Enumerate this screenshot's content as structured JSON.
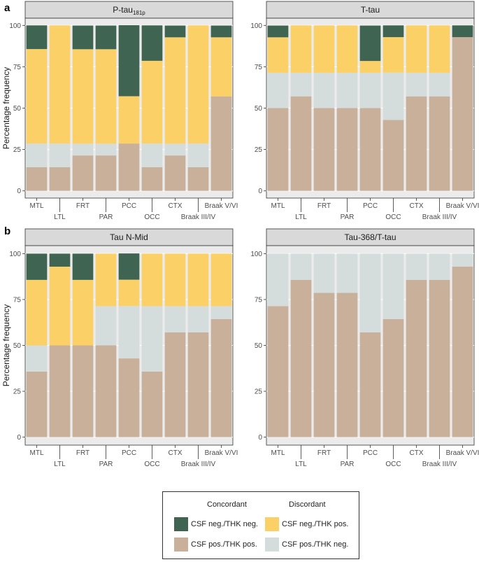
{
  "panel_letters": [
    "a",
    "b"
  ],
  "colors": {
    "csf_neg_thk_neg": "#3f6452",
    "csf_neg_thk_pos": "#fbd066",
    "csf_pos_thk_pos": "#c8b09a",
    "csf_pos_thk_neg": "#d4dcdc",
    "strip": "#d9d9d9",
    "panel_bg": "#ebebeb"
  },
  "legend": {
    "concordant_title": "Concordant",
    "discordant_title": "Discordant",
    "items": [
      {
        "key": "csf_neg_thk_neg",
        "prefix": "CSF",
        "label": "neg./THK neg."
      },
      {
        "key": "csf_neg_thk_pos",
        "prefix": "CSF",
        "label": "neg./THK pos."
      },
      {
        "key": "csf_pos_thk_pos",
        "prefix": "CSF",
        "label": "pos./THK pos."
      },
      {
        "key": "csf_pos_thk_neg",
        "prefix": "CSF",
        "label": "pos./THK neg."
      }
    ]
  },
  "chart_data": [
    {
      "type": "bar",
      "stacked": true,
      "title": "P-tau",
      "title_subscript": "181p",
      "panel_letter": "a",
      "ylabel": "Percentage frequency",
      "ylim": [
        0,
        100
      ],
      "yticks": [
        0,
        25,
        50,
        75,
        100
      ],
      "categories": [
        "MTL",
        "LTL",
        "FRT",
        "PAR",
        "PCC",
        "OCC",
        "CTX",
        "Braak III/IV",
        "Braak V/VI"
      ],
      "series": [
        {
          "name": "CSF pos./THK pos.",
          "key": "csf_pos_thk_pos",
          "values": [
            14.3,
            14.3,
            21.4,
            21.4,
            28.6,
            14.3,
            21.4,
            14.3,
            57.1
          ]
        },
        {
          "name": "CSF pos./THK neg.",
          "key": "csf_pos_thk_neg",
          "values": [
            14.3,
            14.3,
            7.1,
            7.1,
            0,
            14.3,
            7.1,
            14.3,
            0
          ]
        },
        {
          "name": "CSF neg./THK pos.",
          "key": "csf_neg_thk_pos",
          "values": [
            57.1,
            71.4,
            57.1,
            57.1,
            28.6,
            50.0,
            64.3,
            71.4,
            35.7
          ]
        },
        {
          "name": "CSF neg./THK neg.",
          "key": "csf_neg_thk_neg",
          "values": [
            14.3,
            0,
            14.3,
            14.3,
            42.9,
            21.4,
            7.1,
            0,
            7.1
          ]
        }
      ]
    },
    {
      "type": "bar",
      "stacked": true,
      "title": "T-tau",
      "title_subscript": "",
      "panel_letter": "",
      "ylabel": "",
      "ylim": [
        0,
        100
      ],
      "yticks": [
        0,
        25,
        50,
        75,
        100
      ],
      "categories": [
        "MTL",
        "LTL",
        "FRT",
        "PAR",
        "PCC",
        "OCC",
        "CTX",
        "Braak III/IV",
        "Braak V/VI"
      ],
      "series": [
        {
          "name": "CSF pos./THK pos.",
          "key": "csf_pos_thk_pos",
          "values": [
            50.0,
            57.1,
            50.0,
            50.0,
            50.0,
            42.9,
            57.1,
            57.1,
            92.9
          ]
        },
        {
          "name": "CSF pos./THK neg.",
          "key": "csf_pos_thk_neg",
          "values": [
            21.4,
            14.3,
            21.4,
            21.4,
            21.4,
            28.6,
            14.3,
            14.3,
            0
          ]
        },
        {
          "name": "CSF neg./THK pos.",
          "key": "csf_neg_thk_pos",
          "values": [
            21.4,
            28.6,
            28.6,
            28.6,
            7.1,
            21.4,
            28.6,
            28.6,
            0
          ]
        },
        {
          "name": "CSF neg./THK neg.",
          "key": "csf_neg_thk_neg",
          "values": [
            7.1,
            0,
            0,
            0,
            21.4,
            7.1,
            0,
            0,
            7.1
          ]
        }
      ]
    },
    {
      "type": "bar",
      "stacked": true,
      "title": "Tau N-Mid",
      "title_subscript": "",
      "panel_letter": "b",
      "ylabel": "Percentage frequency",
      "ylim": [
        0,
        100
      ],
      "yticks": [
        0,
        25,
        50,
        75,
        100
      ],
      "categories": [
        "MTL",
        "LTL",
        "FRT",
        "PAR",
        "PCC",
        "OCC",
        "CTX",
        "Braak III/IV",
        "Braak V/VI"
      ],
      "series": [
        {
          "name": "CSF pos./THK pos.",
          "key": "csf_pos_thk_pos",
          "values": [
            35.7,
            50.0,
            50.0,
            50.0,
            42.9,
            35.7,
            57.1,
            57.1,
            64.3
          ]
        },
        {
          "name": "CSF pos./THK neg.",
          "key": "csf_pos_thk_neg",
          "values": [
            14.3,
            0,
            0,
            21.4,
            28.6,
            35.7,
            14.3,
            14.3,
            7.1
          ]
        },
        {
          "name": "CSF neg./THK pos.",
          "key": "csf_neg_thk_pos",
          "values": [
            35.7,
            42.9,
            35.7,
            28.6,
            14.3,
            28.6,
            28.6,
            28.6,
            28.6
          ]
        },
        {
          "name": "CSF neg./THK neg.",
          "key": "csf_neg_thk_neg",
          "values": [
            14.3,
            7.1,
            14.3,
            0,
            14.3,
            0,
            0,
            0,
            0
          ]
        }
      ]
    },
    {
      "type": "bar",
      "stacked": true,
      "title": "Tau-368/T-tau",
      "title_subscript": "",
      "panel_letter": "",
      "ylabel": "",
      "ylim": [
        0,
        100
      ],
      "yticks": [
        0,
        25,
        50,
        75,
        100
      ],
      "categories": [
        "MTL",
        "LTL",
        "FRT",
        "PAR",
        "PCC",
        "OCC",
        "CTX",
        "Braak III/IV",
        "Braak V/VI"
      ],
      "series": [
        {
          "name": "CSF pos./THK pos.",
          "key": "csf_pos_thk_pos",
          "values": [
            71.4,
            85.7,
            78.6,
            78.6,
            57.1,
            64.3,
            85.7,
            85.7,
            92.9
          ]
        },
        {
          "name": "CSF pos./THK neg.",
          "key": "csf_pos_thk_neg",
          "values": [
            28.6,
            14.3,
            21.4,
            21.4,
            42.9,
            35.7,
            14.3,
            14.3,
            7.1
          ]
        },
        {
          "name": "CSF neg./THK pos.",
          "key": "csf_neg_thk_pos",
          "values": [
            0,
            0,
            0,
            0,
            0,
            0,
            0,
            0,
            0
          ]
        },
        {
          "name": "CSF neg./THK neg.",
          "key": "csf_neg_thk_neg",
          "values": [
            0,
            0,
            0,
            0,
            0,
            0,
            0,
            0,
            0
          ]
        }
      ]
    }
  ]
}
